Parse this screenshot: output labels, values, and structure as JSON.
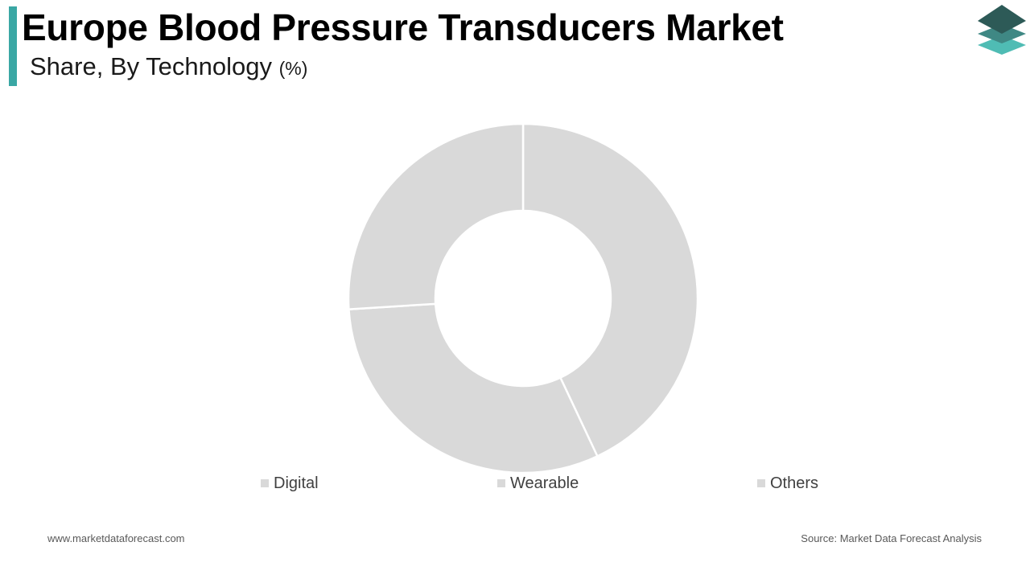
{
  "header": {
    "title": "Europe Blood Pressure Transducers Market",
    "subtitle": "Share, By Technology",
    "subtitle_unit": "(%)"
  },
  "colors": {
    "accent": "#3aa7a4",
    "slice_fill": "#d9d9d9",
    "slice_border": "#ffffff",
    "logo_top": "#2d5a57",
    "logo_middle": "#3f8884",
    "logo_bottom": "#4fbcb4"
  },
  "logo": {
    "icon": "stacked-layers-icon"
  },
  "chart_data": {
    "type": "pie",
    "style": "donut",
    "title": "",
    "categories": [
      "Digital",
      "Wearable",
      "Others"
    ],
    "values": [
      43,
      31,
      26
    ],
    "legend_position": "bottom"
  },
  "legend": [
    {
      "label": "Digital"
    },
    {
      "label": "Wearable"
    },
    {
      "label": "Others"
    }
  ],
  "footer": {
    "website": "www.marketdataforecast.com",
    "source": "Source: Market Data Forecast Analysis"
  }
}
